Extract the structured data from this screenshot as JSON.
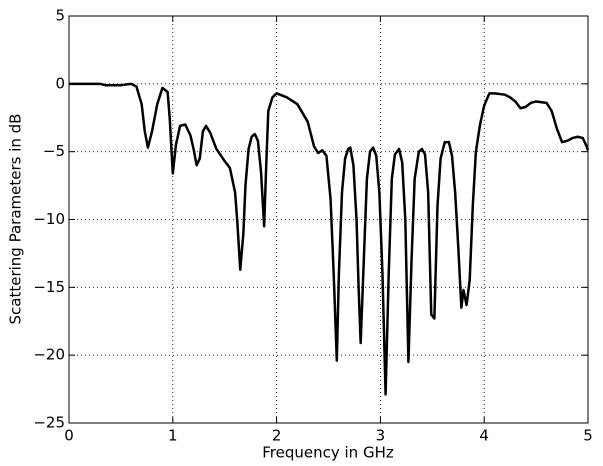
{
  "chart_data": {
    "type": "line",
    "x_label": "Frequency in GHz",
    "y_label": "Scattering Parameters in dB",
    "xlim": [
      0,
      5
    ],
    "ylim": [
      -25,
      5
    ],
    "xticks": [
      0,
      1,
      2,
      3,
      4,
      5
    ],
    "yticks": [
      {
        "value": -25,
        "label": "−25"
      },
      {
        "value": -20,
        "label": "−20"
      },
      {
        "value": -15,
        "label": "−15"
      },
      {
        "value": -10,
        "label": "−10"
      },
      {
        "value": -5,
        "label": "−5"
      },
      0,
      5
    ],
    "grid": true,
    "x": [
      0,
      0.3,
      0.35,
      0.5,
      0.6,
      0.65,
      0.7,
      0.73,
      0.76,
      0.8,
      0.85,
      0.9,
      0.95,
      0.97,
      1.0,
      1.03,
      1.07,
      1.12,
      1.17,
      1.2,
      1.23,
      1.26,
      1.29,
      1.32,
      1.36,
      1.42,
      1.5,
      1.55,
      1.6,
      1.62,
      1.65,
      1.68,
      1.7,
      1.73,
      1.76,
      1.79,
      1.82,
      1.85,
      1.88,
      1.9,
      1.92,
      1.96,
      2.0,
      2.1,
      2.2,
      2.3,
      2.36,
      2.4,
      2.44,
      2.48,
      2.52,
      2.55,
      2.58,
      2.6,
      2.63,
      2.66,
      2.69,
      2.71,
      2.74,
      2.77,
      2.79,
      2.81,
      2.84,
      2.87,
      2.9,
      2.93,
      2.96,
      2.99,
      3.02,
      3.05,
      3.08,
      3.11,
      3.14,
      3.18,
      3.21,
      3.24,
      3.27,
      3.3,
      3.33,
      3.37,
      3.4,
      3.43,
      3.46,
      3.49,
      3.52,
      3.55,
      3.58,
      3.62,
      3.66,
      3.69,
      3.72,
      3.75,
      3.78,
      3.8,
      3.83,
      3.86,
      3.89,
      3.92,
      3.96,
      4.0,
      4.05,
      4.1,
      4.2,
      4.25,
      4.3,
      4.35,
      4.4,
      4.45,
      4.5,
      4.6,
      4.65,
      4.7,
      4.75,
      4.8,
      4.85,
      4.9,
      4.95,
      4.98,
      5.0
    ],
    "series": [
      {
        "color": "#000000",
        "values": [
          0,
          0,
          -0.1,
          -0.1,
          0,
          -0.2,
          -1.5,
          -3.5,
          -4.7,
          -3.5,
          -1.5,
          -0.3,
          -0.6,
          -2.5,
          -6.6,
          -4.5,
          -3.1,
          -3.0,
          -3.8,
          -4.8,
          -6.0,
          -5.5,
          -3.5,
          -3.1,
          -3.6,
          -4.8,
          -5.7,
          -6.2,
          -8,
          -10,
          -13.7,
          -11,
          -7.5,
          -4.8,
          -3.9,
          -3.7,
          -4.2,
          -6.5,
          -10.5,
          -6,
          -2,
          -1,
          -0.7,
          -1,
          -1.5,
          -2.8,
          -4.6,
          -5.1,
          -4.9,
          -5.3,
          -8.5,
          -14,
          -20.4,
          -14,
          -8,
          -5.5,
          -4.8,
          -4.7,
          -6,
          -10,
          -15,
          -19.1,
          -13,
          -7,
          -5,
          -4.7,
          -5.3,
          -8,
          -14,
          -22.9,
          -14,
          -7,
          -5.2,
          -4.8,
          -5.8,
          -10,
          -20.5,
          -13,
          -7,
          -5,
          -4.8,
          -5.2,
          -8,
          -17,
          -17.3,
          -9,
          -5.5,
          -4.3,
          -4.3,
          -5.3,
          -8,
          -12,
          -16.5,
          -15.2,
          -16.3,
          -14.5,
          -9,
          -5,
          -3,
          -1.6,
          -0.7,
          -0.7,
          -0.8,
          -1,
          -1.3,
          -1.8,
          -1.7,
          -1.4,
          -1.3,
          -1.4,
          -2,
          -3.3,
          -4.3,
          -4.2,
          -4,
          -3.9,
          -4,
          -4.5,
          -4.9
        ]
      }
    ]
  }
}
